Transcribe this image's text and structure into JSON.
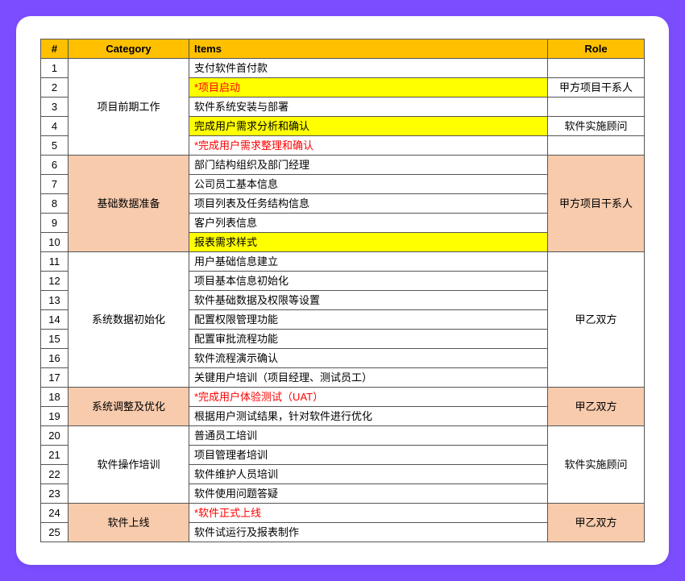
{
  "headers": {
    "num": "#",
    "category": "Category",
    "items": "Items",
    "role": "Role"
  },
  "colors": {
    "page_bg": "#7c4dff",
    "card_bg": "#ffffff",
    "header_bg": "#ffc000",
    "peach_bg": "#f8cbad",
    "yellow_hl": "#ffff00",
    "red_text": "#ff0000",
    "border": "#555555"
  },
  "groups": [
    {
      "category": "项目前期工作",
      "role": "",
      "peach": false,
      "rows": [
        {
          "n": 1,
          "item": "支付软件首付款",
          "hl": false,
          "red": false,
          "role": ""
        },
        {
          "n": 2,
          "item": "*项目启动",
          "hl": true,
          "red": true,
          "role": "甲方项目干系人"
        },
        {
          "n": 3,
          "item": "软件系统安装与部署",
          "hl": false,
          "red": false,
          "role": ""
        },
        {
          "n": 4,
          "item": "完成用户需求分析和确认",
          "hl": true,
          "red": false,
          "role": "软件实施顾问"
        },
        {
          "n": 5,
          "item": "*完成用户需求整理和确认",
          "hl": false,
          "red": true,
          "role": ""
        }
      ],
      "role_merge": false
    },
    {
      "category": "基础数据准备",
      "role": "甲方项目干系人",
      "peach": true,
      "rows": [
        {
          "n": 6,
          "item": "部门结构组织及部门经理",
          "hl": false,
          "red": false
        },
        {
          "n": 7,
          "item": "公司员工基本信息",
          "hl": false,
          "red": false
        },
        {
          "n": 8,
          "item": "项目列表及任务结构信息",
          "hl": false,
          "red": false
        },
        {
          "n": 9,
          "item": "客户列表信息",
          "hl": false,
          "red": false
        },
        {
          "n": 10,
          "item": "报表需求样式",
          "hl": true,
          "red": false
        }
      ],
      "role_merge": true
    },
    {
      "category": "系统数据初始化",
      "role": "甲乙双方",
      "peach": false,
      "rows": [
        {
          "n": 11,
          "item": "用户基础信息建立",
          "hl": false,
          "red": false
        },
        {
          "n": 12,
          "item": "项目基本信息初始化",
          "hl": false,
          "red": false
        },
        {
          "n": 13,
          "item": "软件基础数据及权限等设置",
          "hl": false,
          "red": false
        },
        {
          "n": 14,
          "item": "配置权限管理功能",
          "hl": false,
          "red": false
        },
        {
          "n": 15,
          "item": "配置审批流程功能",
          "hl": false,
          "red": false
        },
        {
          "n": 16,
          "item": "软件流程演示确认",
          "hl": false,
          "red": false
        },
        {
          "n": 17,
          "item": "关键用户培训（项目经理、测试员工）",
          "hl": false,
          "red": false
        }
      ],
      "role_merge": true
    },
    {
      "category": "系统调整及优化",
      "role": "甲乙双方",
      "peach": true,
      "rows": [
        {
          "n": 18,
          "item": "*完成用户体验测试（UAT）",
          "hl": false,
          "red": true
        },
        {
          "n": 19,
          "item": "根据用户测试结果，针对软件进行优化",
          "hl": false,
          "red": false
        }
      ],
      "role_merge": true
    },
    {
      "category": "软件操作培训",
      "role": "软件实施顾问",
      "peach": false,
      "rows": [
        {
          "n": 20,
          "item": "普通员工培训",
          "hl": false,
          "red": false
        },
        {
          "n": 21,
          "item": "项目管理者培训",
          "hl": false,
          "red": false
        },
        {
          "n": 22,
          "item": "软件维护人员培训",
          "hl": false,
          "red": false
        },
        {
          "n": 23,
          "item": "软件使用问题答疑",
          "hl": false,
          "red": false
        }
      ],
      "role_merge": true
    },
    {
      "category": "软件上线",
      "role": "甲乙双方",
      "peach": true,
      "rows": [
        {
          "n": 24,
          "item": "*软件正式上线",
          "hl": false,
          "red": true
        },
        {
          "n": 25,
          "item": "软件试运行及报表制作",
          "hl": false,
          "red": false
        }
      ],
      "role_merge": true
    }
  ]
}
